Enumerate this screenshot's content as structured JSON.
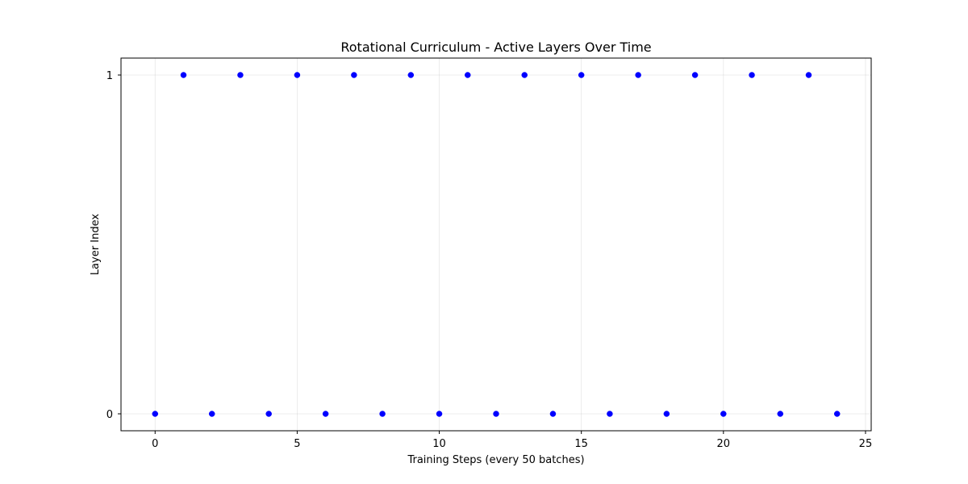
{
  "chart_data": {
    "type": "scatter",
    "title": "Rotational Curriculum - Active Layers Over Time",
    "xlabel": "Training Steps (every 50 batches)",
    "ylabel": "Layer Index",
    "xlim": [
      -1.2,
      25.2
    ],
    "ylim": [
      -0.05,
      1.05
    ],
    "x_ticks": [
      0,
      5,
      10,
      15,
      20,
      25
    ],
    "y_ticks": [
      0,
      1
    ],
    "grid": true,
    "marker_color": "#0000ff",
    "series": [
      {
        "x": [
          0,
          1,
          2,
          3,
          4,
          5,
          6,
          7,
          8,
          9,
          10,
          11,
          12,
          13,
          14,
          15,
          16,
          17,
          18,
          19,
          20,
          21,
          22,
          23,
          24
        ],
        "y": [
          0,
          1,
          0,
          1,
          0,
          1,
          0,
          1,
          0,
          1,
          0,
          1,
          0,
          1,
          0,
          1,
          0,
          1,
          0,
          1,
          0,
          1,
          0,
          1,
          0
        ]
      }
    ]
  }
}
